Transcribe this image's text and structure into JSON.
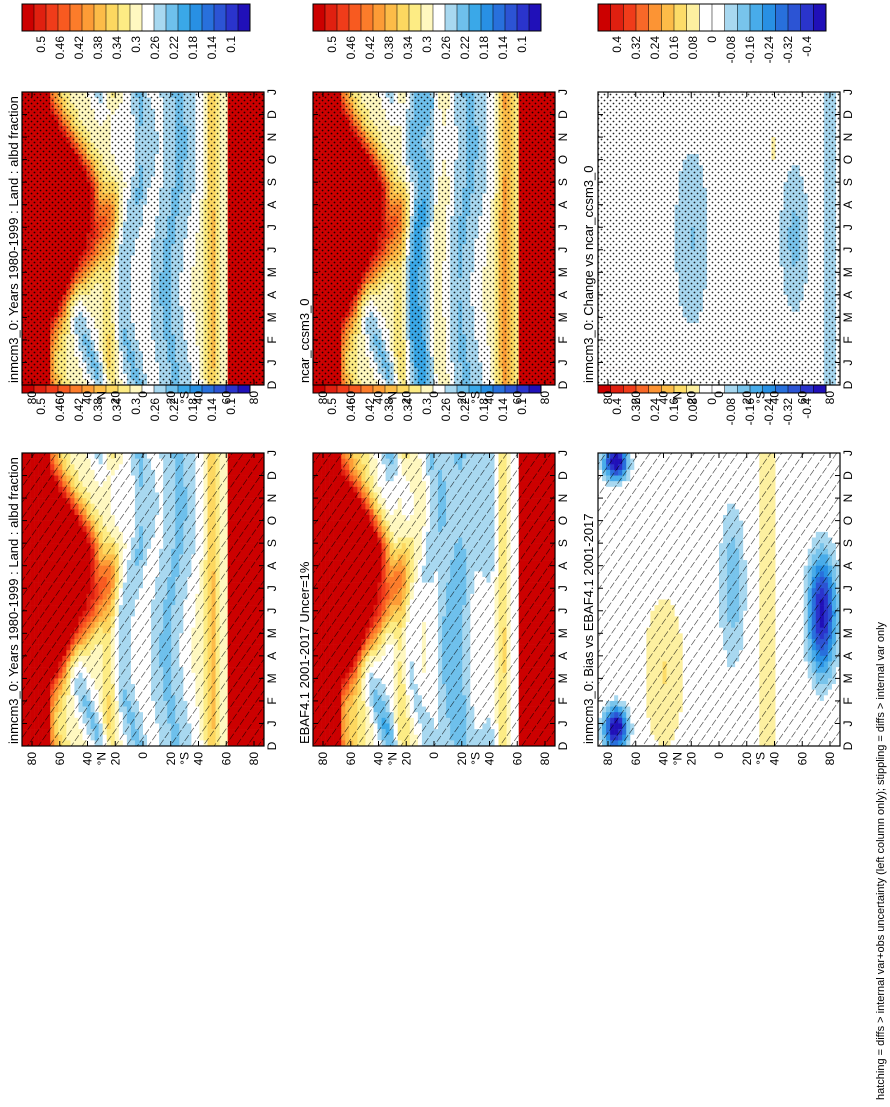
{
  "footnote": "hatching = diffs > internal var+obs uncertainty (left column only); stippling = diffs > internal var only",
  "colors": {
    "abs_scale": [
      "#cc0000",
      "#e02010",
      "#f03c1a",
      "#f85a20",
      "#fc7c2a",
      "#fd9c36",
      "#fdbc48",
      "#fdd860",
      "#fdec84",
      "#fff8c0",
      "#ffffff",
      "#a8d8f0",
      "#6ec0ec",
      "#3aa8e8",
      "#2890e4",
      "#2870dc",
      "#2c54d4",
      "#2a34cc",
      "#2010b8"
    ],
    "diff_scale": [
      "#cc0000",
      "#e02010",
      "#f03c1a",
      "#f86828",
      "#fc9434",
      "#fdbc48",
      "#fddc68",
      "#fdf0a0",
      "#ffffff",
      "#ffffff",
      "#a8d8f0",
      "#78c4ec",
      "#48acea",
      "#2890e4",
      "#2870dc",
      "#2c54d4",
      "#2a34cc",
      "#2010b8"
    ]
  },
  "chart_data": [
    {
      "type": "heatmap",
      "panel": "left-top",
      "title": "inmcm3_0: Years 1980-1999 : Land : albd fraction",
      "x_ticks": [
        "D",
        "J",
        "F",
        "M",
        "A",
        "M",
        "J",
        "J",
        "A",
        "S",
        "O",
        "N",
        "D",
        "J"
      ],
      "y_ticks": [
        "80",
        "60",
        "40",
        "20",
        "0",
        "20",
        "40",
        "60",
        "80"
      ],
      "y_hemisphere": [
        "°N",
        "°S"
      ],
      "colorbar_labels": [
        "0.5",
        "0.46",
        "0.42",
        "0.38",
        "0.34",
        "0.3",
        "0.26",
        "0.22",
        "0.18",
        "0.14",
        "0.1"
      ],
      "overlay": "hatching",
      "zlim": [
        0.1,
        0.5
      ]
    },
    {
      "type": "heatmap",
      "panel": "left-middle",
      "title": "EBAF4.1 2001-2017 Uncer=1%",
      "x_ticks": [
        "D",
        "J",
        "F",
        "M",
        "A",
        "M",
        "J",
        "J",
        "A",
        "S",
        "O",
        "N",
        "D",
        "J"
      ],
      "y_ticks": [
        "80",
        "60",
        "40",
        "20",
        "0",
        "20",
        "40",
        "60",
        "80"
      ],
      "y_hemisphere": [
        "°N",
        "°S"
      ],
      "colorbar_labels": [
        "0.5",
        "0.46",
        "0.42",
        "0.38",
        "0.34",
        "0.3",
        "0.26",
        "0.22",
        "0.18",
        "0.14",
        "0.1"
      ],
      "overlay": "hatching",
      "zlim": [
        0.1,
        0.5
      ]
    },
    {
      "type": "heatmap",
      "panel": "left-bottom",
      "title": "inmcm3_0: Bias vs EBAF4.1 2001-2017",
      "x_ticks": [
        "D",
        "J",
        "F",
        "M",
        "A",
        "M",
        "J",
        "J",
        "A",
        "S",
        "O",
        "N",
        "D",
        "J"
      ],
      "y_ticks": [
        "80",
        "60",
        "40",
        "20",
        "0",
        "20",
        "40",
        "60",
        "80"
      ],
      "y_hemisphere": [
        "°N",
        "°S"
      ],
      "colorbar_labels": [
        "0.4",
        "0.32",
        "0.24",
        "0.16",
        "0.08",
        "0",
        "-0.08",
        "-0.16",
        "-0.24",
        "-0.32",
        "-0.4"
      ],
      "overlay": "hatching",
      "zlim": [
        -0.4,
        0.4
      ]
    },
    {
      "type": "heatmap",
      "panel": "right-top",
      "title": "inmcm3_0: Years 1980-1999 : Land : albd fraction",
      "x_ticks": [
        "D",
        "J",
        "F",
        "M",
        "A",
        "M",
        "J",
        "J",
        "A",
        "S",
        "O",
        "N",
        "D",
        "J"
      ],
      "y_ticks": [
        "80",
        "60",
        "40",
        "20",
        "0",
        "20",
        "40",
        "60",
        "80"
      ],
      "y_hemisphere": [
        "°N",
        "°S"
      ],
      "colorbar_labels": [
        "0.5",
        "0.46",
        "0.42",
        "0.38",
        "0.34",
        "0.3",
        "0.26",
        "0.22",
        "0.18",
        "0.14",
        "0.1"
      ],
      "overlay": "stippling",
      "zlim": [
        0.1,
        0.5
      ]
    },
    {
      "type": "heatmap",
      "panel": "right-middle",
      "title": "ncar_ccsm3_0",
      "x_ticks": [
        "D",
        "J",
        "F",
        "M",
        "A",
        "M",
        "J",
        "J",
        "A",
        "S",
        "O",
        "N",
        "D",
        "J"
      ],
      "y_ticks": [
        "80",
        "60",
        "40",
        "20",
        "0",
        "20",
        "40",
        "60",
        "80"
      ],
      "y_hemisphere": [
        "°N",
        "°S"
      ],
      "colorbar_labels": [
        "0.5",
        "0.46",
        "0.42",
        "0.38",
        "0.34",
        "0.3",
        "0.26",
        "0.22",
        "0.18",
        "0.14",
        "0.1"
      ],
      "overlay": "stippling",
      "zlim": [
        0.1,
        0.5
      ]
    },
    {
      "type": "heatmap",
      "panel": "right-bottom",
      "title": "inmcm3_0: Change vs ncar_ccsm3_0",
      "x_ticks": [
        "D",
        "J",
        "F",
        "M",
        "A",
        "M",
        "J",
        "J",
        "A",
        "S",
        "O",
        "N",
        "D",
        "J"
      ],
      "y_ticks": [
        "80",
        "60",
        "40",
        "20",
        "0",
        "20",
        "40",
        "60",
        "80"
      ],
      "y_hemisphere": [
        "°N",
        "°S"
      ],
      "colorbar_labels": [
        "0.4",
        "0.32",
        "0.24",
        "0.16",
        "0.08",
        "0",
        "-0.08",
        "-0.16",
        "-0.24",
        "-0.32",
        "-0.4"
      ],
      "overlay": "stippling",
      "zlim": [
        -0.4,
        0.4
      ]
    }
  ]
}
